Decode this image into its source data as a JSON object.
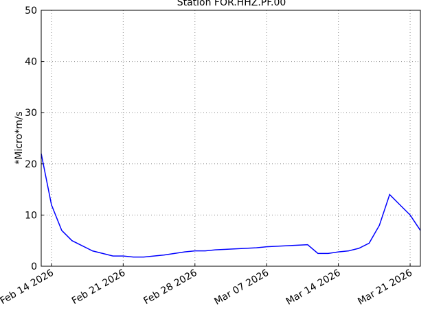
{
  "chart_data": {
    "type": "line",
    "title": "Station FOR.HHZ.PF.00",
    "ylabel": "*Micro*m/s",
    "x": [
      "2026-02-13",
      "2026-02-14",
      "2026-02-15",
      "2026-02-16",
      "2026-02-17",
      "2026-02-18",
      "2026-02-19",
      "2026-02-20",
      "2026-02-21",
      "2026-02-22",
      "2026-02-23",
      "2026-02-24",
      "2026-02-25",
      "2026-02-26",
      "2026-02-27",
      "2026-02-28",
      "2026-03-01",
      "2026-03-02",
      "2026-03-03",
      "2026-03-04",
      "2026-03-05",
      "2026-03-06",
      "2026-03-07",
      "2026-03-08",
      "2026-03-09",
      "2026-03-10",
      "2026-03-11",
      "2026-03-12",
      "2026-03-13",
      "2026-03-14",
      "2026-03-15",
      "2026-03-16",
      "2026-03-17",
      "2026-03-18",
      "2026-03-19",
      "2026-03-20",
      "2026-03-21",
      "2026-03-22"
    ],
    "series": [
      {
        "name": "FOR.HHZ.PF.00",
        "color": "#0000ff",
        "values": [
          22,
          12,
          7,
          5,
          4,
          3,
          2.5,
          2,
          2,
          1.8,
          1.8,
          2,
          2.2,
          2.5,
          2.8,
          3,
          3,
          3.2,
          3.3,
          3.4,
          3.5,
          3.6,
          3.8,
          3.9,
          4,
          4.1,
          4.2,
          2.5,
          2.5,
          2.8,
          3,
          3.5,
          4.5,
          8,
          14,
          12,
          10,
          7
        ]
      }
    ],
    "xlim": [
      "2026-02-13",
      "2026-03-22"
    ],
    "xticks": [
      {
        "value": "2026-02-14",
        "label": "Feb 14 2026"
      },
      {
        "value": "2026-02-21",
        "label": "Feb 21 2026"
      },
      {
        "value": "2026-02-28",
        "label": "Feb 28 2026"
      },
      {
        "value": "2026-03-07",
        "label": "Mar 07 2026"
      },
      {
        "value": "2026-03-14",
        "label": "Mar 14 2026"
      },
      {
        "value": "2026-03-21",
        "label": "Mar 21 2026"
      }
    ],
    "ylim": [
      0,
      50
    ],
    "yticks": [
      0,
      10,
      20,
      30,
      40,
      50
    ],
    "grid": true
  }
}
